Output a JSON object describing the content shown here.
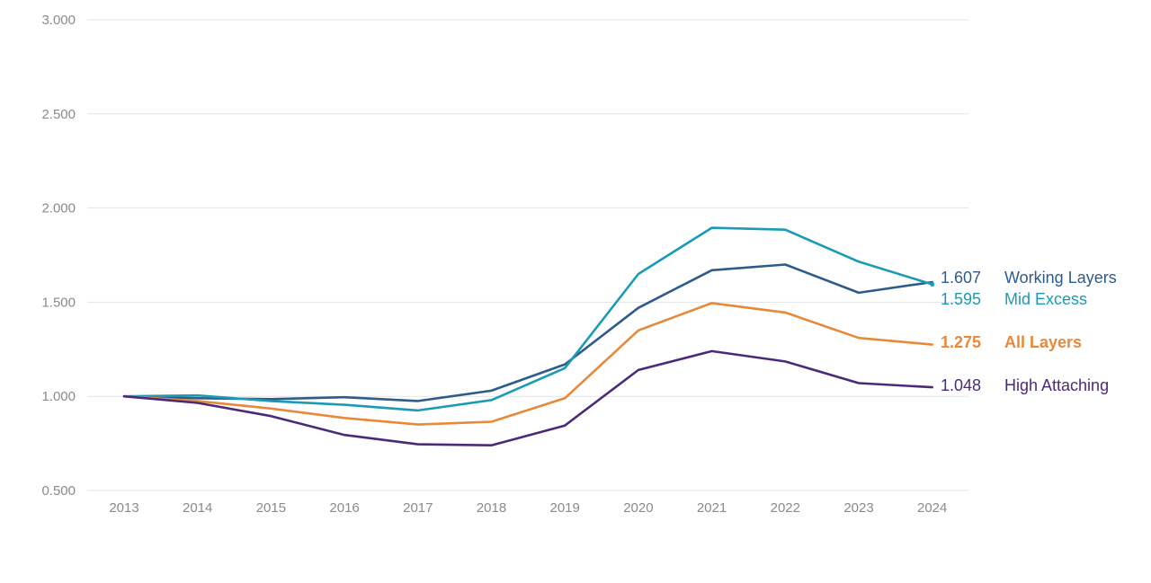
{
  "chart_data": {
    "type": "line",
    "x": [
      "2013",
      "2014",
      "2015",
      "2016",
      "2017",
      "2018",
      "2019",
      "2020",
      "2021",
      "2022",
      "2023",
      "2024"
    ],
    "ylim": [
      0.5,
      3.0
    ],
    "y_ticks": [
      "0.500",
      "1.000",
      "1.500",
      "2.000",
      "2.500",
      "3.000"
    ],
    "grid": true,
    "legend": "end-of-line labels",
    "series": [
      {
        "name": "Working Layers",
        "end_label": "1.607",
        "color": "#2e5c8a",
        "bold": false,
        "values": [
          1.0,
          0.99,
          0.985,
          0.995,
          0.975,
          1.03,
          1.17,
          1.47,
          1.67,
          1.7,
          1.55,
          1.607
        ]
      },
      {
        "name": "Mid Excess",
        "end_label": "1.595",
        "color": "#1a9bb5",
        "bold": false,
        "values": [
          1.0,
          1.005,
          0.975,
          0.955,
          0.925,
          0.98,
          1.15,
          1.65,
          1.895,
          1.885,
          1.715,
          1.595
        ]
      },
      {
        "name": "All Layers",
        "end_label": "1.275",
        "color": "#e8893a",
        "bold": true,
        "values": [
          1.0,
          0.975,
          0.935,
          0.885,
          0.85,
          0.865,
          0.99,
          1.35,
          1.495,
          1.445,
          1.31,
          1.275
        ]
      },
      {
        "name": "High Attaching",
        "end_label": "1.048",
        "color": "#4b2a7a",
        "bold": false,
        "values": [
          1.0,
          0.965,
          0.895,
          0.795,
          0.745,
          0.74,
          0.845,
          1.14,
          1.24,
          1.185,
          1.07,
          1.048
        ]
      }
    ]
  }
}
